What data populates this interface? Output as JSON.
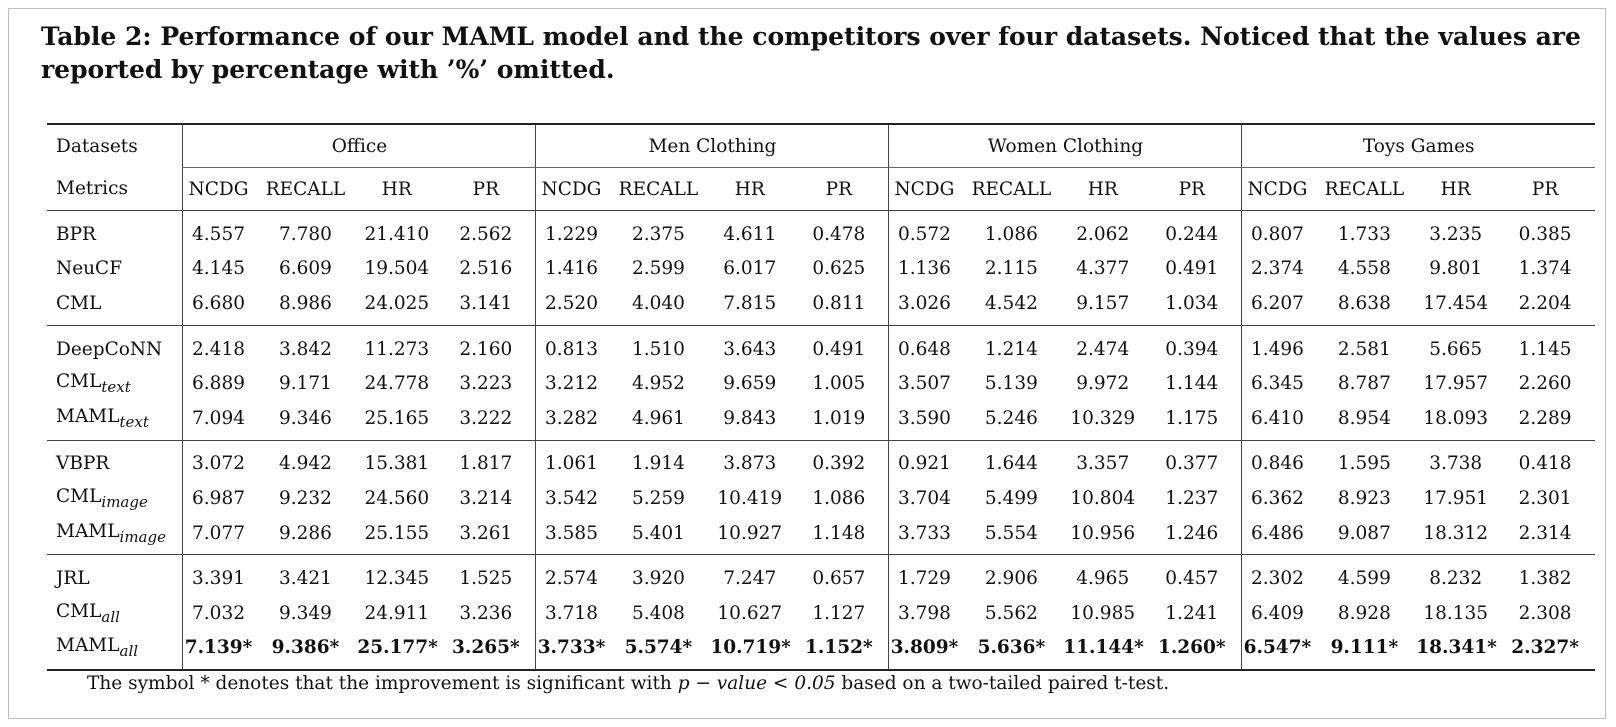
{
  "caption": "Table 2: Performance of our MAML model and the competitors over four datasets. Noticed that the values are reported by percentage with ’%’ omitted.",
  "header": {
    "datasets_label": "Datasets",
    "metrics_label": "Metrics",
    "datasets": [
      "Office",
      "Men Clothing",
      "Women Clothing",
      "Toys Games"
    ],
    "metrics": [
      "NCDG",
      "RECALL",
      "HR",
      "PR"
    ]
  },
  "groups": [
    [
      {
        "name": "BPR",
        "sub": "",
        "values": [
          "4.557",
          "7.780",
          "21.410",
          "2.562",
          "1.229",
          "2.375",
          "4.611",
          "0.478",
          "0.572",
          "1.086",
          "2.062",
          "0.244",
          "0.807",
          "1.733",
          "3.235",
          "0.385"
        ]
      },
      {
        "name": "NeuCF",
        "sub": "",
        "values": [
          "4.145",
          "6.609",
          "19.504",
          "2.516",
          "1.416",
          "2.599",
          "6.017",
          "0.625",
          "1.136",
          "2.115",
          "4.377",
          "0.491",
          "2.374",
          "4.558",
          "9.801",
          "1.374"
        ]
      },
      {
        "name": "CML",
        "sub": "",
        "values": [
          "6.680",
          "8.986",
          "24.025",
          "3.141",
          "2.520",
          "4.040",
          "7.815",
          "0.811",
          "3.026",
          "4.542",
          "9.157",
          "1.034",
          "6.207",
          "8.638",
          "17.454",
          "2.204"
        ]
      }
    ],
    [
      {
        "name": "DeepCoNN",
        "sub": "",
        "values": [
          "2.418",
          "3.842",
          "11.273",
          "2.160",
          "0.813",
          "1.510",
          "3.643",
          "0.491",
          "0.648",
          "1.214",
          "2.474",
          "0.394",
          "1.496",
          "2.581",
          "5.665",
          "1.145"
        ]
      },
      {
        "name": "CML",
        "sub": "text",
        "values": [
          "6.889",
          "9.171",
          "24.778",
          "3.223",
          "3.212",
          "4.952",
          "9.659",
          "1.005",
          "3.507",
          "5.139",
          "9.972",
          "1.144",
          "6.345",
          "8.787",
          "17.957",
          "2.260"
        ]
      },
      {
        "name": "MAML",
        "sub": "text",
        "values": [
          "7.094",
          "9.346",
          "25.165",
          "3.222",
          "3.282",
          "4.961",
          "9.843",
          "1.019",
          "3.590",
          "5.246",
          "10.329",
          "1.175",
          "6.410",
          "8.954",
          "18.093",
          "2.289"
        ]
      }
    ],
    [
      {
        "name": "VBPR",
        "sub": "",
        "values": [
          "3.072",
          "4.942",
          "15.381",
          "1.817",
          "1.061",
          "1.914",
          "3.873",
          "0.392",
          "0.921",
          "1.644",
          "3.357",
          "0.377",
          "0.846",
          "1.595",
          "3.738",
          "0.418"
        ]
      },
      {
        "name": "CML",
        "sub": "image",
        "values": [
          "6.987",
          "9.232",
          "24.560",
          "3.214",
          "3.542",
          "5.259",
          "10.419",
          "1.086",
          "3.704",
          "5.499",
          "10.804",
          "1.237",
          "6.362",
          "8.923",
          "17.951",
          "2.301"
        ]
      },
      {
        "name": "MAML",
        "sub": "image",
        "values": [
          "7.077",
          "9.286",
          "25.155",
          "3.261",
          "3.585",
          "5.401",
          "10.927",
          "1.148",
          "3.733",
          "5.554",
          "10.956",
          "1.246",
          "6.486",
          "9.087",
          "18.312",
          "2.314"
        ]
      }
    ],
    [
      {
        "name": "JRL",
        "sub": "",
        "values": [
          "3.391",
          "3.421",
          "12.345",
          "1.525",
          "2.574",
          "3.920",
          "7.247",
          "0.657",
          "1.729",
          "2.906",
          "4.965",
          "0.457",
          "2.302",
          "4.599",
          "8.232",
          "1.382"
        ]
      },
      {
        "name": "CML",
        "sub": "all",
        "values": [
          "7.032",
          "9.349",
          "24.911",
          "3.236",
          "3.718",
          "5.408",
          "10.627",
          "1.127",
          "3.798",
          "5.562",
          "10.985",
          "1.241",
          "6.409",
          "8.928",
          "18.135",
          "2.308"
        ]
      },
      {
        "name": "MAML",
        "sub": "all",
        "bold": true,
        "values": [
          "7.139*",
          "9.386*",
          "25.177*",
          "3.265*",
          "3.733*",
          "5.574*",
          "10.719*",
          "1.152*",
          "3.809*",
          "5.636*",
          "11.144*",
          "1.260*",
          "6.547*",
          "9.111*",
          "18.341*",
          "2.327*"
        ]
      }
    ]
  ],
  "footnote": {
    "before": "The symbol * denotes that the improvement is significant with ",
    "math": "p − value < 0.05",
    "after": " based on a two-tailed paired t-test."
  }
}
